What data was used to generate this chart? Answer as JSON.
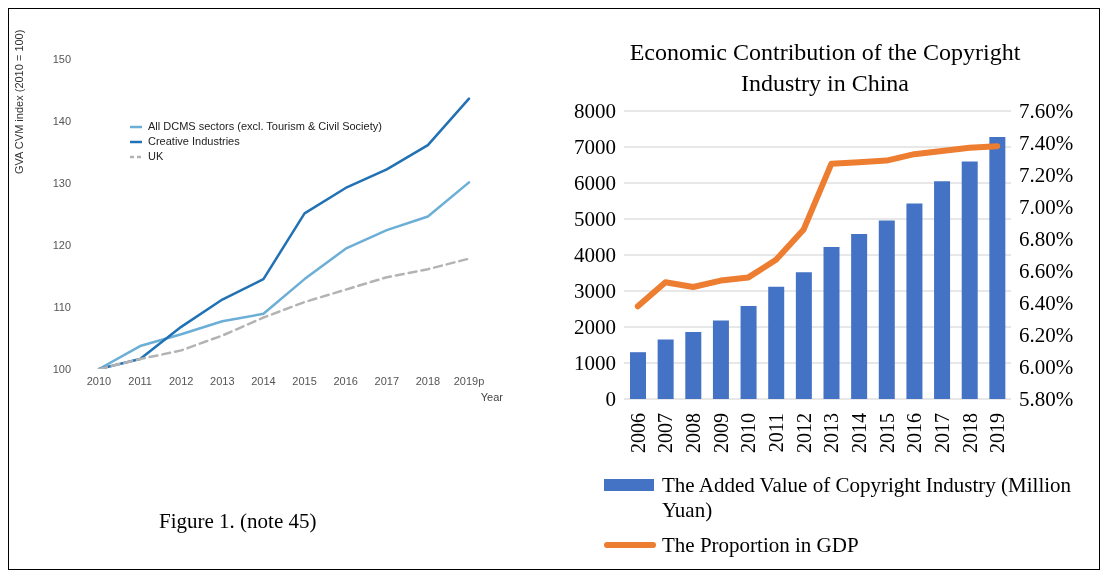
{
  "chart_data": [
    {
      "type": "line",
      "ylabel": "GVA CVM index (2010 = 100)",
      "xlabel": "Year",
      "categories": [
        "2010",
        "2011",
        "2012",
        "2013",
        "2014",
        "2015",
        "2016",
        "2017",
        "2018",
        "2019p"
      ],
      "series": [
        {
          "name": "All DCMS sectors (excl. Tourism & Civil Society)",
          "color": "#6baed6",
          "values": [
            100,
            103.7,
            105.6,
            107.7,
            108.9,
            114.5,
            119.4,
            122.4,
            124.6,
            130.1
          ]
        },
        {
          "name": "Creative Industries",
          "color": "#2171b5",
          "values": [
            100,
            101.6,
            106.8,
            111.2,
            114.5,
            125.1,
            129.2,
            132.2,
            136.1,
            143.6
          ]
        },
        {
          "name": "UK",
          "color": "#b3b3b3",
          "line_style": "dashed",
          "values": [
            100,
            101.6,
            103.0,
            105.4,
            108.3,
            110.8,
            112.8,
            114.8,
            116.1,
            117.8
          ]
        }
      ],
      "ylim": [
        100,
        150
      ],
      "yticks": [
        100,
        110,
        120,
        130,
        140,
        150
      ],
      "legend": "top left",
      "annotations": [
        "Figure 1. (note 45)"
      ]
    },
    {
      "type": "bar",
      "title": "Economic Contribution of the Copyright Industry in China",
      "categories": [
        "2006",
        "2007",
        "2008",
        "2009",
        "2010",
        "2011",
        "2012",
        "2013",
        "2014",
        "2015",
        "2016",
        "2017",
        "2018",
        "2019"
      ],
      "series": [
        {
          "name": "The Added Value of Copyright Industry (Million Yuan)",
          "color": "#4472c4",
          "values": [
            1300,
            1650,
            1860,
            2180,
            2580,
            3120,
            3520,
            4220,
            4580,
            4960,
            5430,
            6050,
            6600,
            7280
          ]
        },
        {
          "name": "The Proportion in GDP",
          "type": "line",
          "axis": "y2",
          "color": "#ed7d31",
          "values": [
            6.38,
            6.53,
            6.5,
            6.54,
            6.56,
            6.67,
            6.86,
            7.27,
            7.28,
            7.29,
            7.33,
            7.35,
            7.37,
            7.38
          ]
        }
      ],
      "ylim": [
        0,
        8000
      ],
      "yticks": [
        0,
        1000,
        2000,
        3000,
        4000,
        5000,
        6000,
        7000,
        8000
      ],
      "y2lim": [
        5.8,
        7.6
      ],
      "y2ticks": [
        {
          "value": 5.8,
          "label": "5.80%"
        },
        {
          "value": 6.0,
          "label": "6.00%"
        },
        {
          "value": 6.2,
          "label": "6.20%"
        },
        {
          "value": 6.4,
          "label": "6.40%"
        },
        {
          "value": 6.6,
          "label": "6.60%"
        },
        {
          "value": 6.8,
          "label": "6.80%"
        },
        {
          "value": 7.0,
          "label": "7.00%"
        },
        {
          "value": 7.2,
          "label": "7.20%"
        },
        {
          "value": 7.4,
          "label": "7.40%"
        },
        {
          "value": 7.6,
          "label": "7.60%"
        }
      ],
      "grid": "y",
      "legend": "bottom"
    }
  ]
}
